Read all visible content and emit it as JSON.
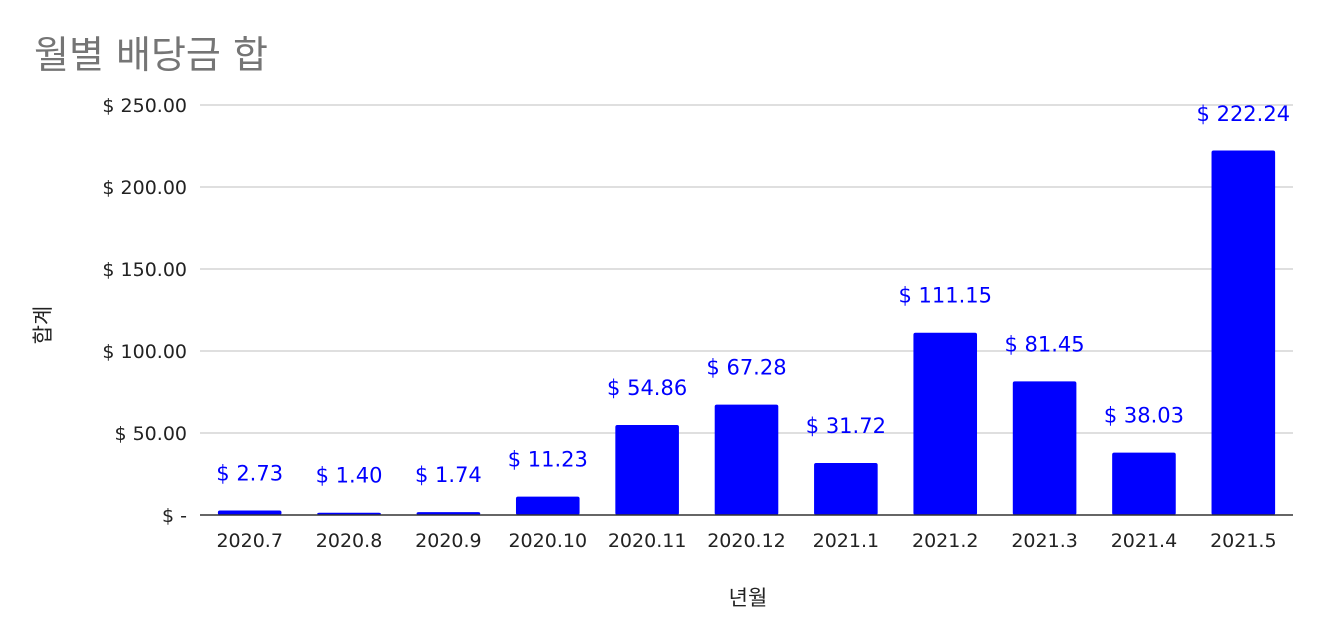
{
  "chart_data": {
    "type": "bar",
    "title": "월별 배당금 합",
    "xlabel": "년월",
    "ylabel": "합계",
    "categories": [
      "2020.7",
      "2020.8",
      "2020.9",
      "2020.10",
      "2020.11",
      "2020.12",
      "2021.1",
      "2021.2",
      "2021.3",
      "2021.4",
      "2021.5"
    ],
    "values": [
      2.73,
      1.4,
      1.74,
      11.23,
      54.86,
      67.28,
      31.72,
      111.15,
      81.45,
      38.03,
      222.24
    ],
    "data_labels": [
      "$ 2.73",
      "$ 1.40",
      "$ 1.74",
      "$ 11.23",
      "$ 54.86",
      "$ 67.28",
      "$ 31.72",
      "$ 111.15",
      "$ 81.45",
      "$ 38.03",
      "$ 222.24"
    ],
    "yticks": [
      0,
      50,
      100,
      150,
      200,
      250
    ],
    "ytick_labels": [
      "$ -",
      "$ 50.00",
      "$ 100.00",
      "$ 150.00",
      "$ 200.00",
      "$ 250.00"
    ],
    "ylim": [
      0,
      250
    ],
    "grid": true,
    "legend": "none",
    "colors": {
      "bar": "#0000ff",
      "label": "#0000ff",
      "grid": "#cccccc",
      "axis": "#333333",
      "title": "#757575"
    }
  }
}
